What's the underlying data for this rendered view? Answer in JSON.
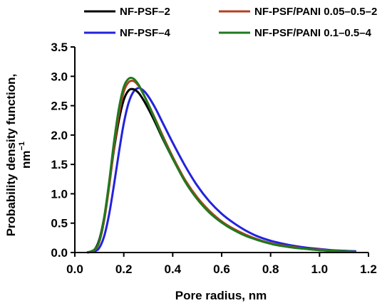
{
  "chart_data": {
    "type": "line",
    "title": "",
    "xlabel": "Pore radius, nm",
    "ylabel_line1": "Probability density function,",
    "ylabel_line2_base": "nm",
    "ylabel_line2_sup": "−1",
    "xlim": [
      0.0,
      1.2
    ],
    "ylim": [
      0.0,
      3.5
    ],
    "xticks": [
      0.0,
      0.2,
      0.4,
      0.6,
      0.8,
      1.0,
      1.2
    ],
    "xtick_labels": [
      "0.0",
      "0.2",
      "0.4",
      "0.6",
      "0.8",
      "1.0",
      "1.2"
    ],
    "yticks": [
      0.0,
      0.5,
      1.0,
      1.5,
      2.0,
      2.5,
      3.0,
      3.5
    ],
    "ytick_labels": [
      "0.0",
      "0.5",
      "1.0",
      "1.5",
      "2.0",
      "2.5",
      "3.0",
      "3.5"
    ],
    "grid": false,
    "legend_position": "top",
    "x": [
      0.05,
      0.08,
      0.1,
      0.12,
      0.14,
      0.16,
      0.18,
      0.2,
      0.22,
      0.24,
      0.26,
      0.28,
      0.3,
      0.33,
      0.36,
      0.4,
      0.45,
      0.5,
      0.55,
      0.6,
      0.65,
      0.7,
      0.75,
      0.8,
      0.85,
      0.9,
      0.95,
      1.0,
      1.05,
      1.1,
      1.15
    ],
    "series": [
      {
        "name": "NF-PSF–2",
        "color": "#000000",
        "values": [
          0.0,
          0.05,
          0.22,
          0.6,
          1.15,
          1.75,
          2.25,
          2.6,
          2.76,
          2.78,
          2.72,
          2.6,
          2.45,
          2.2,
          1.93,
          1.6,
          1.22,
          0.93,
          0.7,
          0.52,
          0.39,
          0.29,
          0.21,
          0.15,
          0.11,
          0.08,
          0.06,
          0.04,
          0.03,
          0.02,
          0.01
        ]
      },
      {
        "name": "NF-PSF–4",
        "color": "#2222dd",
        "values": [
          0.0,
          0.02,
          0.08,
          0.28,
          0.65,
          1.15,
          1.7,
          2.2,
          2.55,
          2.74,
          2.8,
          2.76,
          2.66,
          2.45,
          2.2,
          1.87,
          1.48,
          1.14,
          0.87,
          0.66,
          0.5,
          0.37,
          0.27,
          0.2,
          0.15,
          0.11,
          0.08,
          0.06,
          0.04,
          0.03,
          0.02
        ]
      },
      {
        "name": "NF-PSF/PANI 0.05–0.5–2",
        "color": "#b34020",
        "values": [
          0.0,
          0.04,
          0.18,
          0.55,
          1.12,
          1.78,
          2.35,
          2.74,
          2.9,
          2.92,
          2.84,
          2.7,
          2.53,
          2.26,
          1.98,
          1.63,
          1.24,
          0.94,
          0.71,
          0.53,
          0.4,
          0.3,
          0.22,
          0.16,
          0.12,
          0.09,
          0.06,
          0.05,
          0.03,
          0.02,
          0.01
        ]
      },
      {
        "name": "NF-PSF/PANI 0.1–0.5–4",
        "color": "#1e7a1e",
        "values": [
          0.0,
          0.05,
          0.2,
          0.6,
          1.2,
          1.88,
          2.45,
          2.82,
          2.96,
          2.96,
          2.86,
          2.7,
          2.52,
          2.24,
          1.95,
          1.6,
          1.21,
          0.91,
          0.68,
          0.51,
          0.38,
          0.28,
          0.21,
          0.15,
          0.11,
          0.08,
          0.06,
          0.04,
          0.03,
          0.02,
          0.01
        ]
      }
    ]
  }
}
